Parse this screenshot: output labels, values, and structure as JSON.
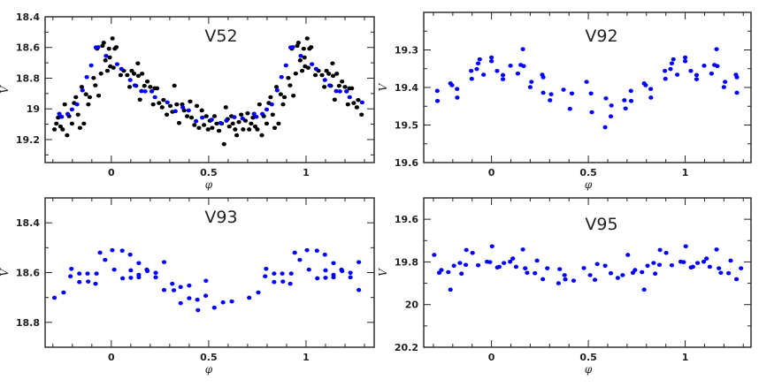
{
  "figure": {
    "xlabel": "φ",
    "ylabel": "V"
  },
  "chart_data": [
    {
      "type": "scatter",
      "title": "V52",
      "xlabel": "φ",
      "ylabel": "V",
      "xlim": [
        -0.34,
        1.35
      ],
      "ylim": [
        18.4,
        19.35
      ],
      "y_inverted": true,
      "xticks": [
        0,
        0.5,
        1
      ],
      "yticks": [
        18.4,
        18.6,
        18.8,
        19,
        19.2
      ],
      "phase_repeat": true,
      "phase_range": [
        -0.3,
        1.3
      ],
      "colors": {
        "black": "#000000",
        "blue": "#0000ff"
      },
      "series": [
        {
          "name": "black",
          "color": "#000000",
          "points": [
            [
              0.006,
              18.541
            ],
            [
              0.018,
              18.608
            ],
            [
              0.026,
              18.598
            ],
            [
              0.011,
              18.732
            ],
            [
              0.048,
              18.78
            ],
            [
              0.064,
              18.752
            ],
            [
              0.082,
              18.78
            ],
            [
              0.094,
              18.857
            ],
            [
              0.105,
              18.752
            ],
            [
              0.117,
              18.771
            ],
            [
              0.127,
              18.85
            ],
            [
              0.136,
              18.704
            ],
            [
              0.139,
              18.785
            ],
            [
              0.147,
              18.94
            ],
            [
              0.158,
              18.771
            ],
            [
              0.17,
              18.85
            ],
            [
              0.185,
              18.822
            ],
            [
              0.2,
              18.857
            ],
            [
              0.208,
              18.886
            ],
            [
              0.215,
              18.971
            ],
            [
              0.223,
              18.866
            ],
            [
              0.235,
              18.866
            ],
            [
              0.245,
              18.962
            ],
            [
              0.261,
              18.99
            ],
            [
              0.268,
              18.942
            ],
            [
              0.285,
              19.038
            ],
            [
              0.303,
              18.981
            ],
            [
              0.314,
              19.019
            ],
            [
              0.324,
              18.849
            ],
            [
              0.336,
              18.971
            ],
            [
              0.348,
              19.092
            ],
            [
              0.364,
              18.971
            ],
            [
              0.374,
              19.01
            ],
            [
              0.389,
              19.048
            ],
            [
              0.405,
              18.952
            ],
            [
              0.412,
              19.057
            ],
            [
              0.427,
              19.105
            ],
            [
              0.439,
              18.981
            ],
            [
              0.45,
              19.124
            ],
            [
              0.465,
              19.01
            ],
            [
              0.476,
              19.105
            ],
            [
              0.488,
              19.048
            ],
            [
              0.497,
              19.134
            ],
            [
              0.506,
              19.077
            ],
            [
              0.518,
              19.124
            ],
            [
              0.53,
              19.048
            ],
            [
              0.541,
              19.096
            ],
            [
              0.553,
              19.143
            ],
            [
              0.567,
              19.096
            ],
            [
              0.579,
              19.23
            ],
            [
              0.588,
              18.99
            ],
            [
              0.597,
              19.067
            ],
            [
              0.606,
              19.115
            ],
            [
              0.617,
              19.048
            ],
            [
              0.624,
              19.096
            ],
            [
              0.636,
              19.134
            ],
            [
              0.644,
              19.172
            ],
            [
              0.655,
              19.086
            ],
            [
              0.667,
              19.038
            ],
            [
              0.677,
              19.134
            ],
            [
              0.689,
              19.077
            ],
            [
              0.7,
              19.029
            ],
            [
              0.708,
              19.134
            ],
            [
              0.718,
              19.096
            ],
            [
              0.727,
              19.057
            ],
            [
              0.739,
              19.115
            ],
            [
              0.75,
              19.134
            ],
            [
              0.761,
              18.971
            ],
            [
              0.773,
              19.172
            ],
            [
              0.783,
              19.048
            ],
            [
              0.798,
              19.096
            ],
            [
              0.809,
              18.962
            ],
            [
              0.818,
              18.924
            ],
            [
              0.829,
              19.038
            ],
            [
              0.839,
              19.124
            ],
            [
              0.848,
              18.857
            ],
            [
              0.859,
              19.096
            ],
            [
              0.87,
              18.905
            ],
            [
              0.882,
              18.971
            ],
            [
              0.889,
              18.924
            ],
            [
              0.909,
              18.799
            ],
            [
              0.918,
              18.847
            ],
            [
              0.927,
              18.608
            ],
            [
              0.935,
              18.914
            ],
            [
              0.947,
              18.77
            ],
            [
              0.955,
              18.589
            ],
            [
              0.961,
              18.569
            ],
            [
              0.97,
              18.684
            ],
            [
              0.98,
              18.752
            ],
            [
              0.988,
              18.608
            ],
            [
              0.995,
              18.723
            ],
            [
              0.992,
              18.665
            ]
          ]
        },
        {
          "name": "blue",
          "color": "#0000ff",
          "points": [
            [
              0.921,
              18.6
            ],
            [
              0.973,
              18.655
            ],
            [
              0.03,
              18.709
            ],
            [
              0.052,
              18.74
            ],
            [
              0.097,
              18.812
            ],
            [
              0.121,
              18.847
            ],
            [
              0.155,
              18.884
            ],
            [
              0.174,
              18.886
            ],
            [
              0.208,
              18.886
            ],
            [
              0.224,
              18.924
            ],
            [
              0.288,
              18.958
            ],
            [
              0.329,
              19.015
            ],
            [
              0.367,
              18.99
            ],
            [
              0.397,
              19.01
            ],
            [
              0.435,
              19.08
            ],
            [
              0.467,
              19.057
            ],
            [
              0.515,
              19.071
            ],
            [
              0.561,
              19.092
            ],
            [
              0.591,
              19.077
            ],
            [
              0.632,
              19.054
            ],
            [
              0.674,
              19.063
            ],
            [
              0.733,
              19.032
            ],
            [
              0.745,
              19.052
            ],
            [
              0.776,
              19.033
            ],
            [
              0.798,
              19.004
            ],
            [
              0.824,
              18.971
            ],
            [
              0.852,
              18.879
            ],
            [
              0.874,
              18.793
            ],
            [
              0.897,
              18.717
            ],
            [
              0.932,
              18.598
            ]
          ]
        }
      ]
    },
    {
      "type": "scatter",
      "title": "V92",
      "xlabel": "φ",
      "ylabel": "V",
      "xlim": [
        -0.35,
        1.34
      ],
      "ylim": [
        19.2,
        19.6
      ],
      "y_inverted": true,
      "xticks": [
        0,
        0.5,
        1
      ],
      "yticks": [
        19.3,
        19.4,
        19.5,
        19.6
      ],
      "phase_repeat": true,
      "phase_range": [
        -0.3,
        1.3
      ],
      "series": [
        {
          "name": "blue",
          "color": "#0000ff",
          "points": [
            [
              0,
              19.32
            ],
            [
              0,
              19.33
            ],
            [
              0.029,
              19.356
            ],
            [
              0.059,
              19.367
            ],
            [
              0.059,
              19.378
            ],
            [
              0.098,
              19.342
            ],
            [
              0.136,
              19.363
            ],
            [
              0.151,
              19.34
            ],
            [
              0.162,
              19.298
            ],
            [
              0.166,
              19.343
            ],
            [
              0.2,
              19.399
            ],
            [
              0.206,
              19.385
            ],
            [
              0.262,
              19.366
            ],
            [
              0.267,
              19.373
            ],
            [
              0.267,
              19.414
            ],
            [
              0.302,
              19.434
            ],
            [
              0.308,
              19.418
            ],
            [
              0.372,
              19.406
            ],
            [
              0.405,
              19.457
            ],
            [
              0.415,
              19.416
            ],
            [
              0.491,
              19.385
            ],
            [
              0.514,
              19.416
            ],
            [
              0.518,
              19.466
            ],
            [
              0.587,
              19.506
            ],
            [
              0.591,
              19.429
            ],
            [
              0.616,
              19.477
            ],
            [
              0.619,
              19.448
            ],
            [
              0.686,
              19.434
            ],
            [
              0.692,
              19.456
            ],
            [
              0.72,
              19.409
            ],
            [
              0.721,
              19.436
            ],
            [
              0.788,
              19.389
            ],
            [
              0.796,
              19.394
            ],
            [
              0.822,
              19.404
            ],
            [
              0.823,
              19.427
            ],
            [
              0.895,
              19.356
            ],
            [
              0.898,
              19.377
            ],
            [
              0.924,
              19.351
            ],
            [
              0.931,
              19.336
            ],
            [
              0.939,
              19.325
            ],
            [
              0.959,
              19.366
            ]
          ]
        }
      ]
    },
    {
      "type": "scatter",
      "title": "V93",
      "xlabel": "φ",
      "ylabel": "V",
      "xlim": [
        -0.34,
        1.35
      ],
      "ylim": [
        18.3,
        18.9
      ],
      "y_inverted": true,
      "xticks": [
        0,
        0.5,
        1
      ],
      "yticks": [
        18.4,
        18.6,
        18.8
      ],
      "phase_repeat": true,
      "phase_range": [
        -0.3,
        1.3
      ],
      "series": [
        {
          "name": "blue",
          "color": "#0000ff",
          "points": [
            [
              0.005,
              18.51
            ],
            [
              0.015,
              18.588
            ],
            [
              0.056,
              18.512
            ],
            [
              0.058,
              18.623
            ],
            [
              0.097,
              18.528
            ],
            [
              0.1,
              18.591
            ],
            [
              0.1,
              18.621
            ],
            [
              0.141,
              18.562
            ],
            [
              0.141,
              18.609
            ],
            [
              0.141,
              18.619
            ],
            [
              0.182,
              18.588
            ],
            [
              0.185,
              18.594
            ],
            [
              0.228,
              18.601
            ],
            [
              0.228,
              18.619
            ],
            [
              0.271,
              18.558
            ],
            [
              0.271,
              18.67
            ],
            [
              0.313,
              18.645
            ],
            [
              0.321,
              18.671
            ],
            [
              0.356,
              18.658
            ],
            [
              0.356,
              18.723
            ],
            [
              0.4,
              18.652
            ],
            [
              0.4,
              18.703
            ],
            [
              0.442,
              18.709
            ],
            [
              0.445,
              18.751
            ],
            [
              0.486,
              18.633
            ],
            [
              0.485,
              18.693
            ],
            [
              0.529,
              18.741
            ],
            [
              0.574,
              18.72
            ],
            [
              0.619,
              18.716
            ],
            [
              0.708,
              18.701
            ],
            [
              0.755,
              18.68
            ],
            [
              0.795,
              18.585
            ],
            [
              0.79,
              18.615
            ],
            [
              0.836,
              18.638
            ],
            [
              0.836,
              18.604
            ],
            [
              0.878,
              18.604
            ],
            [
              0.881,
              18.636
            ],
            [
              0.919,
              18.645
            ],
            [
              0.924,
              18.604
            ],
            [
              0.942,
              18.52
            ],
            [
              0.968,
              18.549
            ]
          ]
        }
      ]
    },
    {
      "type": "scatter",
      "title": "V95",
      "xlabel": "φ",
      "ylabel": "V",
      "xlim": [
        -0.35,
        1.34
      ],
      "ylim": [
        19.5,
        20.2
      ],
      "y_inverted": true,
      "xticks": [
        0,
        0.5,
        1
      ],
      "yticks": [
        19.6,
        19.8,
        20,
        20.2
      ],
      "phase_repeat": true,
      "phase_range": [
        -0.3,
        1.3
      ],
      "series": [
        {
          "name": "blue",
          "color": "#0000ff",
          "points": [
            [
              0.003,
              19.727
            ],
            [
              0.03,
              19.826
            ],
            [
              0.04,
              19.823
            ],
            [
              0.064,
              19.805
            ],
            [
              0.096,
              19.799
            ],
            [
              0.11,
              19.784
            ],
            [
              0.127,
              19.823
            ],
            [
              0.162,
              19.742
            ],
            [
              0.174,
              19.83
            ],
            [
              0.184,
              19.851
            ],
            [
              0.224,
              19.853
            ],
            [
              0.235,
              19.794
            ],
            [
              0.265,
              19.881
            ],
            [
              0.288,
              19.83
            ],
            [
              0.346,
              19.9
            ],
            [
              0.352,
              19.834
            ],
            [
              0.377,
              19.862
            ],
            [
              0.381,
              19.882
            ],
            [
              0.424,
              19.888
            ],
            [
              0.477,
              19.829
            ],
            [
              0.509,
              19.862
            ],
            [
              0.534,
              19.884
            ],
            [
              0.546,
              19.81
            ],
            [
              0.587,
              19.818
            ],
            [
              0.616,
              19.853
            ],
            [
              0.652,
              19.875
            ],
            [
              0.677,
              19.862
            ],
            [
              0.704,
              19.767
            ],
            [
              0.73,
              19.851
            ],
            [
              0.741,
              19.838
            ],
            [
              0.777,
              19.848
            ],
            [
              0.788,
              19.93
            ],
            [
              0.806,
              19.818
            ],
            [
              0.837,
              19.805
            ],
            [
              0.845,
              19.855
            ],
            [
              0.867,
              19.814
            ],
            [
              0.87,
              19.744
            ],
            [
              0.902,
              19.758
            ],
            [
              0.931,
              19.816
            ],
            [
              0.977,
              19.799
            ],
            [
              0.992,
              19.801
            ]
          ]
        }
      ]
    }
  ]
}
